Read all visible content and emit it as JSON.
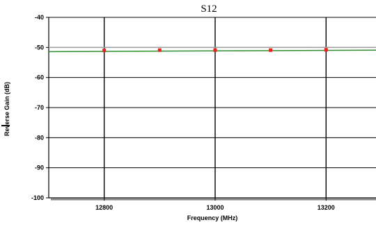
{
  "chart_data": {
    "type": "line",
    "title": "S12",
    "xlabel": "Frequency (MHz)",
    "ylabel": "Reverse Gain (dB)",
    "xlim": [
      12700,
      13290
    ],
    "ylim": [
      -100,
      -40
    ],
    "x_ticks": [
      12800,
      13000,
      13200
    ],
    "y_ticks": [
      -40,
      -50,
      -60,
      -70,
      -80,
      -90,
      -100
    ],
    "grid": true,
    "series": [
      {
        "style": "line",
        "color": "#2e8b2e",
        "x": [
          12700,
          13290
        ],
        "y": [
          -51.4,
          -50.9
        ]
      },
      {
        "style": "markers",
        "color": "#e8231e",
        "x": [
          12800,
          12900,
          13000,
          13100,
          13200
        ],
        "y": [
          -51.0,
          -50.9,
          -50.9,
          -50.9,
          -50.8
        ]
      }
    ],
    "reference_line": {
      "y": -50,
      "color": "#a0a0a0"
    }
  }
}
